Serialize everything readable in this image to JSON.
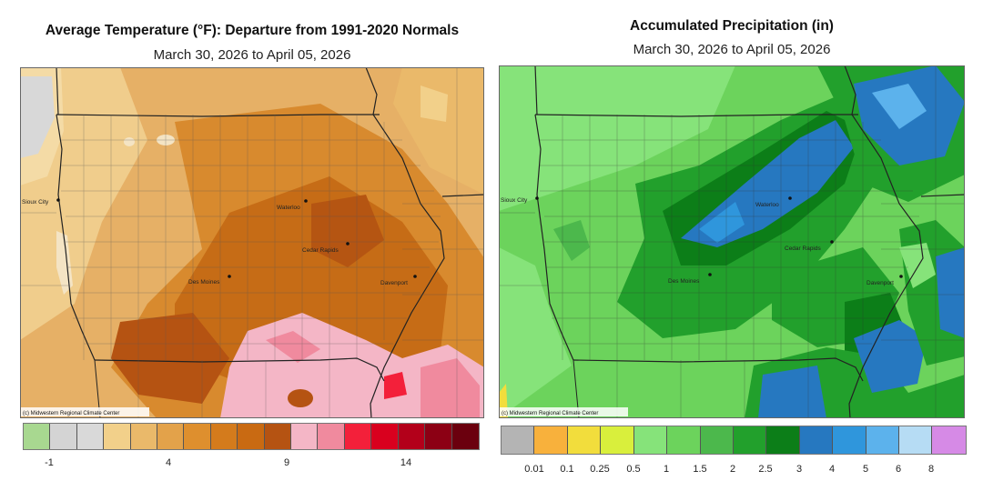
{
  "left": {
    "title": "Average Temperature (°F): Departure from 1991-2020 Normals",
    "subtitle": "March 30, 2026 to April 05, 2026",
    "credit": "(c) Midwestern Regional Climate Center",
    "legend_colors": [
      "#a8d890",
      "#d4d4d4",
      "#d9d9d9",
      "#f2d08a",
      "#eab96a",
      "#e3a24a",
      "#de8f2e",
      "#d47b1c",
      "#c96a12",
      "#b55312",
      "#f4b6c6",
      "#f08a9e",
      "#f3203a",
      "#d9001e",
      "#b3001a",
      "#8c0014",
      "#6b000e"
    ],
    "legend_ticks": [
      "-1",
      "4",
      "9",
      "14"
    ]
  },
  "right": {
    "title": "Accumulated Precipitation (in)",
    "subtitle": "March 30, 2026 to April 05, 2026",
    "credit": "(c) Midwestern Regional Climate Center",
    "legend_colors": [
      "#b4b4b4",
      "#f8b13c",
      "#f2dd3c",
      "#d9ef3c",
      "#86e37a",
      "#6cd35c",
      "#4cb84c",
      "#22a02c",
      "#0c7e18",
      "#2678c0",
      "#2f96dc",
      "#5cb2ec",
      "#b6dcf4",
      "#d68ae6"
    ],
    "legend_ticks": [
      "0.01",
      "0.1",
      "0.25",
      "0.5",
      "1",
      "1.5",
      "2",
      "2.5",
      "3",
      "4",
      "5",
      "6",
      "8"
    ]
  },
  "cities": {
    "sioux_city": "Sioux City",
    "waterloo": "Waterloo",
    "cedar_rapids": "Cedar Rapids",
    "des_moines": "Des Moines",
    "davenport": "Davenport"
  }
}
